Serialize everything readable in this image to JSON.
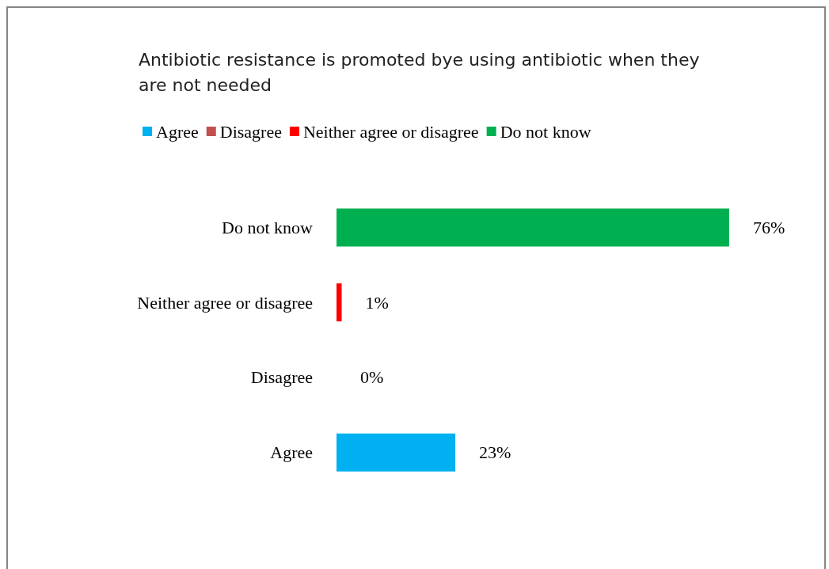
{
  "chart_data": {
    "type": "bar",
    "orientation": "horizontal",
    "stacked": true,
    "title": "Antibiotic resistance is promoted bye using antibiotic when they are not needed",
    "categories": [
      "Do not know",
      "Neither agree or disagree",
      "Disagree",
      "Agree"
    ],
    "legend": "top",
    "series": [
      {
        "name": "Agree",
        "color": "#00b0f0",
        "values": [
          null,
          null,
          null,
          23
        ],
        "value_labels": [
          null,
          null,
          null,
          "23%"
        ]
      },
      {
        "name": "Disagree",
        "color": "#c0504d",
        "values": [
          null,
          null,
          0,
          null
        ],
        "value_labels": [
          null,
          null,
          "0%",
          null
        ]
      },
      {
        "name": "Neither agree or disagree",
        "color": "#ff0000",
        "values": [
          null,
          1,
          null,
          null
        ],
        "value_labels": [
          null,
          "1%",
          null,
          null
        ]
      },
      {
        "name": "Do not know",
        "color": "#00b050",
        "values": [
          76,
          null,
          null,
          null
        ],
        "value_labels": [
          "76%",
          null,
          null,
          null
        ]
      }
    ]
  }
}
